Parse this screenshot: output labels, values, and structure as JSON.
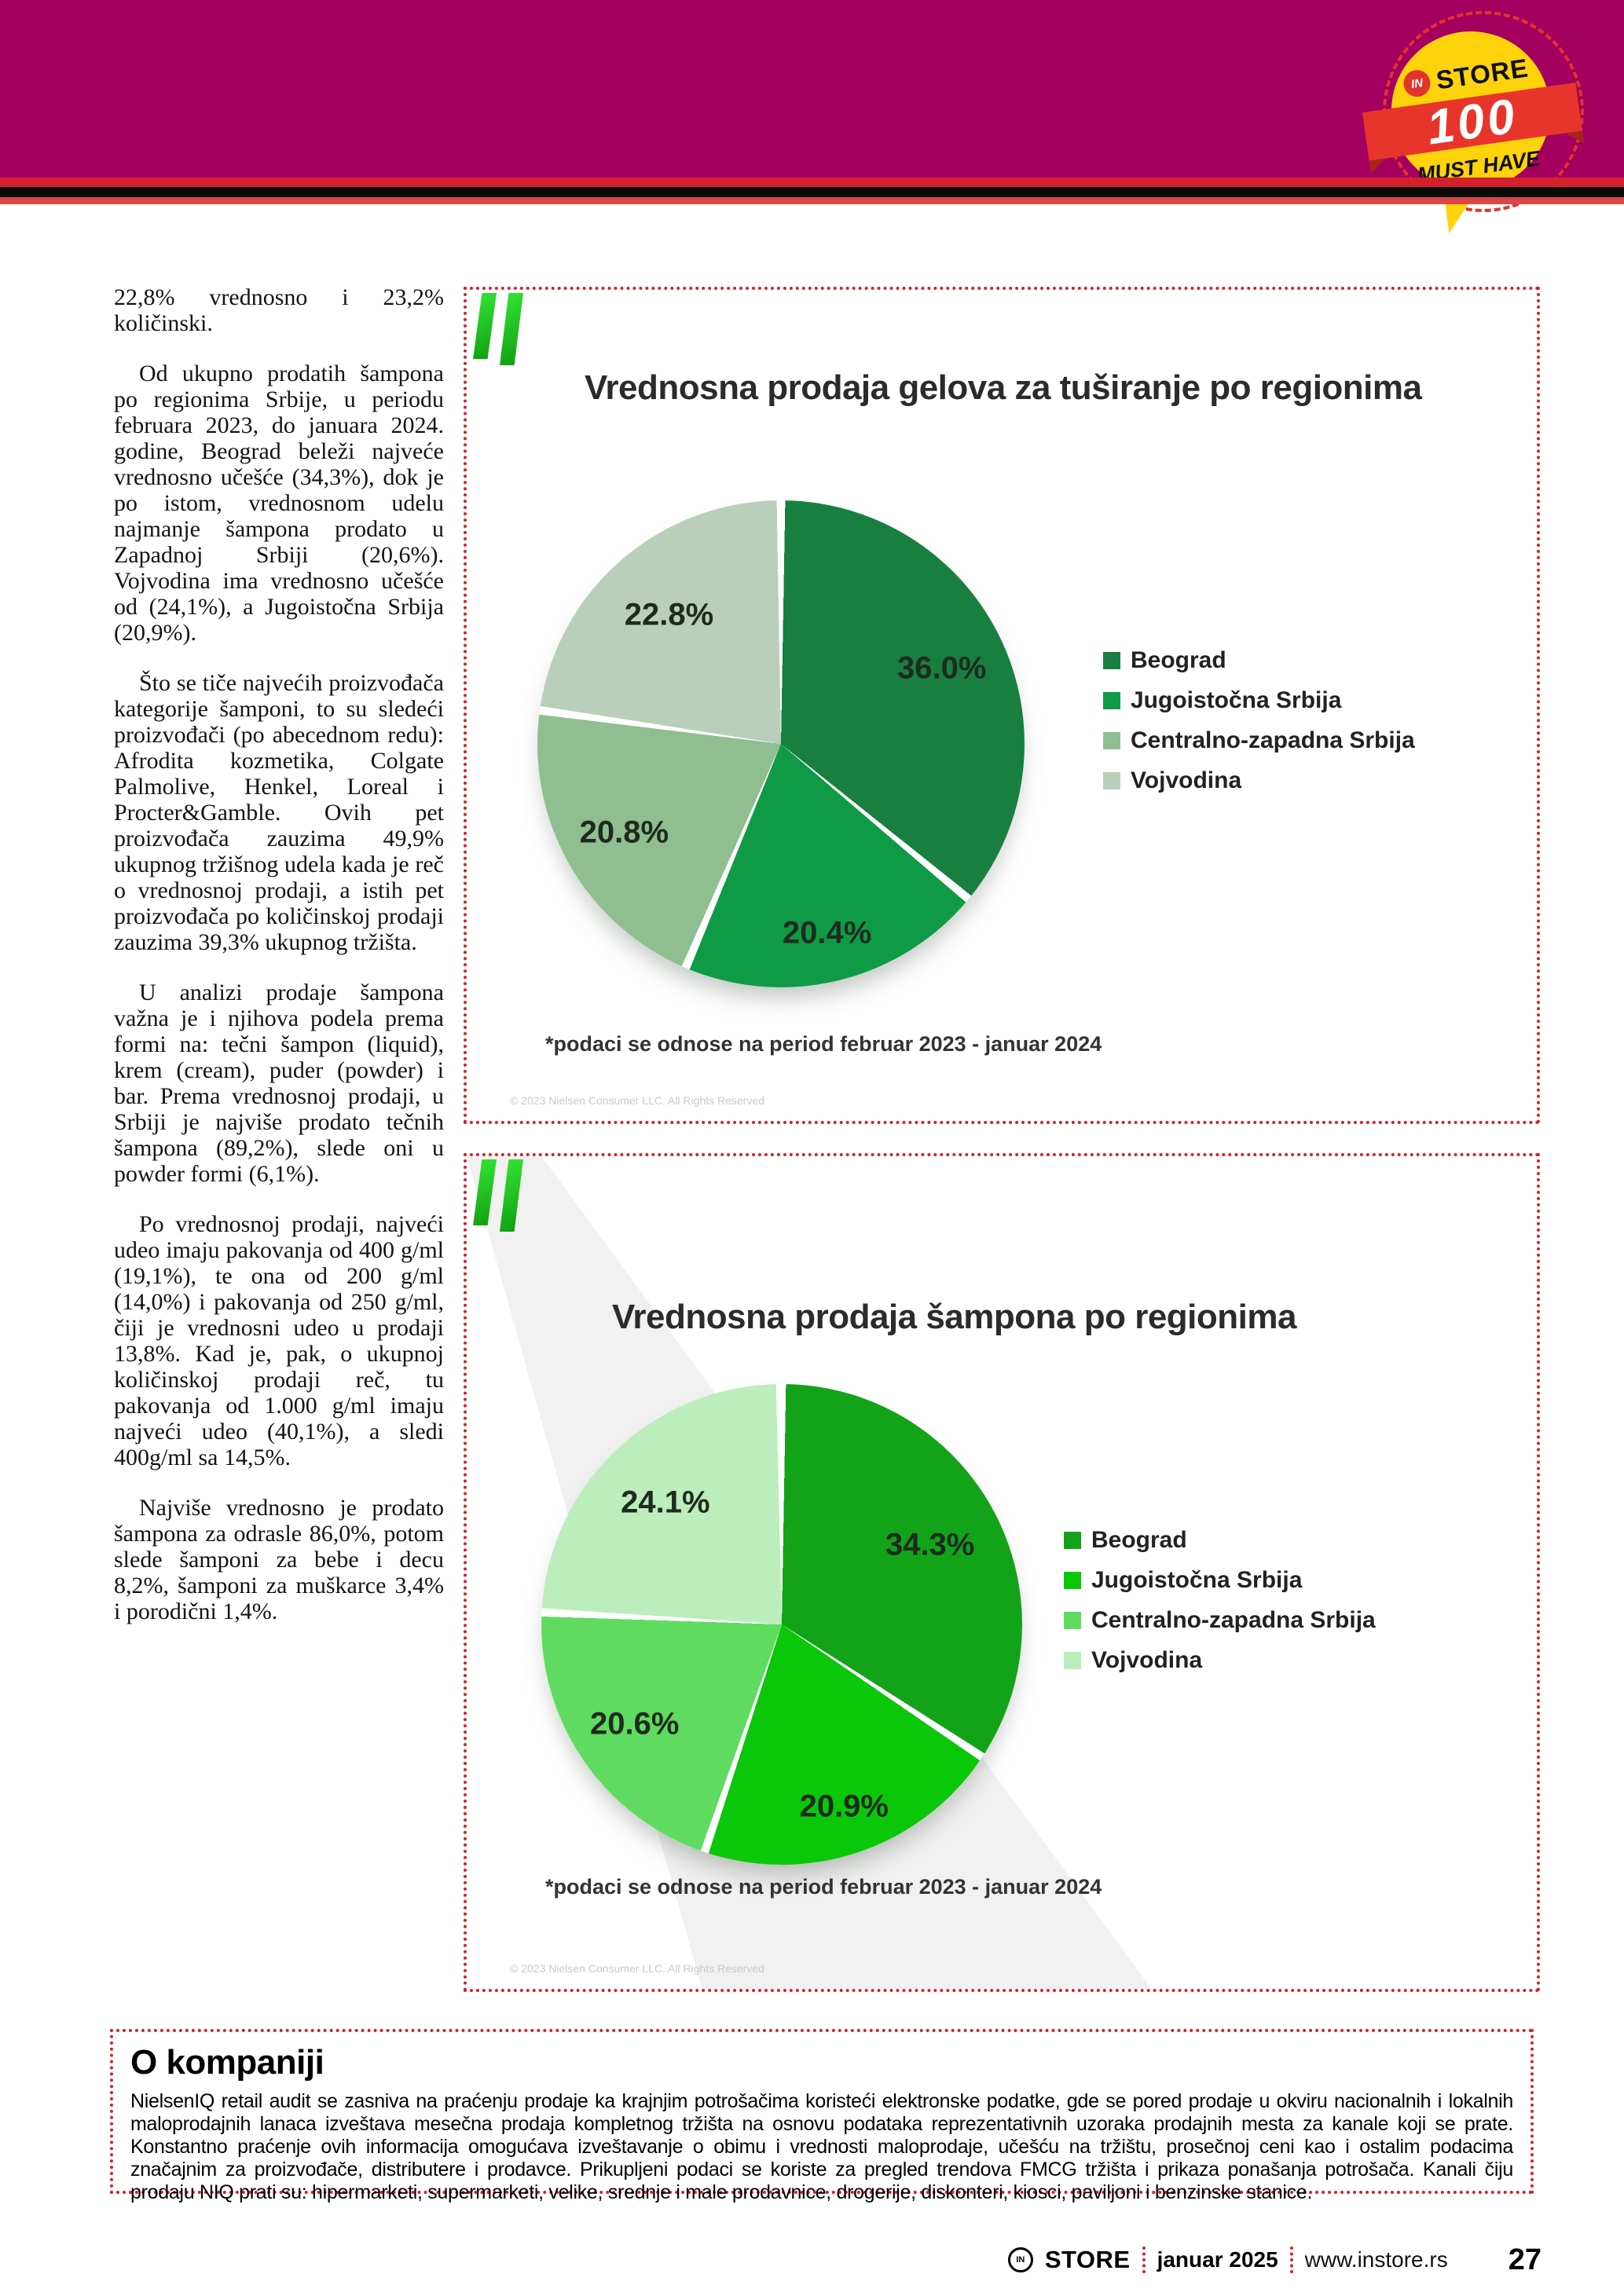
{
  "theme": {
    "header_magenta": "#A3005F",
    "stripe_red": "#D5202C",
    "badge_yellow": "#FFD30B",
    "ribbon_red": "#E8352C",
    "dotted_border_red": "#D5202C",
    "niq_green": "#2BD62B"
  },
  "badge": {
    "in": "IN",
    "store": "STORE",
    "number": "100",
    "tagline": "MUST HAVE"
  },
  "article": {
    "paragraphs": [
      "22,8% vrednosno i 23,2% količinski.",
      "Od ukupno prodatih šampona po regionima Srbije, u periodu februara 2023, do januara 2024. godine, Beograd beleži najveće vrednosno učešće (34,3%), dok je po istom, vrednosnom udelu najmanje šampona prodato u Zapadnoj Srbiji (20,6%). Vojvodina ima vrednosno učešće od (24,1%), a Jugoistočna Srbija (20,9%).",
      "Što se tiče najvećih proizvođača kategorije šamponi, to su sledeći proizvođači (po abecednom redu): Afrodita kozmetika, Colgate Palmolive, Henkel, Loreal i Procter&Gamble. Ovih pet proizvođača zauzima 49,9% ukupnog tržišnog udela kada je reč o vrednosnoj prodaji, a istih pet proizvođača po količinskoj prodaji zauzima 39,3% ukupnog tržišta.",
      "U analizi prodaje šampona važna je i njihova podela prema formi na: tečni šampon (liquid), krem (cream), puder (powder) i bar. Prema vrednosnoj prodaji, u Srbiji je najviše prodato tečnih šampona (89,2%), slede oni u powder formi (6,1%).",
      "Po vrednosnoj prodaji, najveći udeo imaju pakovanja od 400 g/ml (19,1%), te ona od 200 g/ml (14,0%) i pakovanja od 250 g/ml, čiji je vrednosni udeo u prodaji 13,8%. Kad je, pak, o ukupnoj količinskoj prodaji reč, tu pakovanja od 1.000 g/ml imaju najveći udeo (40,1%), a sledi 400g/ml sa 14,5%.",
      "Najviše vrednosno je prodato šampona za odrasle 86,0%, potom slede šamponi za bebe i decu 8,2%, šamponi za muškarce 3,4% i porodični 1,4%."
    ]
  },
  "charts": [
    {
      "title": "Vrednosna prodaja gelova za tuširanje po regionima",
      "footnote": "*podaci se odnose na period februar 2023 - januar 2024",
      "copyright": "© 2023 Nielsen Consumer LLC. All Rights Reserved"
    },
    {
      "title": "Vrednosna prodaja šampona po regionima",
      "footnote": "*podaci se odnose na period februar 2023 - januar 2024",
      "copyright": "© 2023 Nielsen Consumer LLC. All Rights Reserved"
    }
  ],
  "chart_data": [
    {
      "type": "pie",
      "title": "Vrednosna prodaja gelova za tuširanje po regionima",
      "categories": [
        "Beograd",
        "Jugoistočna Srbija",
        "Centralno-zapadna Srbija",
        "Vojvodina"
      ],
      "values": [
        36.0,
        20.4,
        20.8,
        22.8
      ],
      "unit": "%",
      "colors": [
        "#187F40",
        "#0F9B46",
        "#8FBE90",
        "#B9CFBA"
      ],
      "label_radius": [
        0.73,
        0.8,
        0.74,
        0.7
      ],
      "legend_position": "right",
      "start_angle_deg": 0,
      "direction": "clockwise"
    },
    {
      "type": "pie",
      "title": "Vrednosna prodaja šampona po regionima",
      "categories": [
        "Beograd",
        "Jugoistočna Srbija",
        "Centralno-zapadna Srbija",
        "Vojvodina"
      ],
      "values": [
        34.3,
        20.9,
        20.6,
        24.1
      ],
      "unit": "%",
      "colors": [
        "#12A318",
        "#0AC70A",
        "#5FDB60",
        "#BCEDBC"
      ],
      "label_radius": [
        0.7,
        0.8,
        0.74,
        0.7
      ],
      "legend_position": "right",
      "start_angle_deg": 0,
      "direction": "clockwise"
    }
  ],
  "about": {
    "heading": "O kompaniji",
    "body": "NielsenIQ retail audit se zasniva na praćenju prodaje ka krajnjim potrošačima koristeći elektronske podatke, gde se pored prodaje u okviru nacionalnih i lokalnih maloprodajnih lanaca izveštava mesečna prodaja kompletnog tržišta na osnovu podataka reprezentativnih uzoraka prodajnih mesta za kanale koji se prate. Konstantno praćenje ovih informacija omogućava izveštavanje o obimu i vrednosti maloprodaje, učešću na tržištu, prosečnoj ceni kao i ostalim podacima značajnim za proizvođače, distributere i prodavce. Prikupljeni podaci se koriste za pregled trendova FMCG tržišta i prikaza ponašanja potrošača. Kanali čiju prodaju NIQ prati su: hipermarketi, supermarketi, velike, srednje i male prodavnice, drogerije, diskonteri, kiosci, paviljoni i benzinske stanice."
  },
  "footer": {
    "in": "IN",
    "store": "STORE",
    "issue": "januar 2025",
    "site": "www.instore.rs",
    "page_number": "27"
  }
}
